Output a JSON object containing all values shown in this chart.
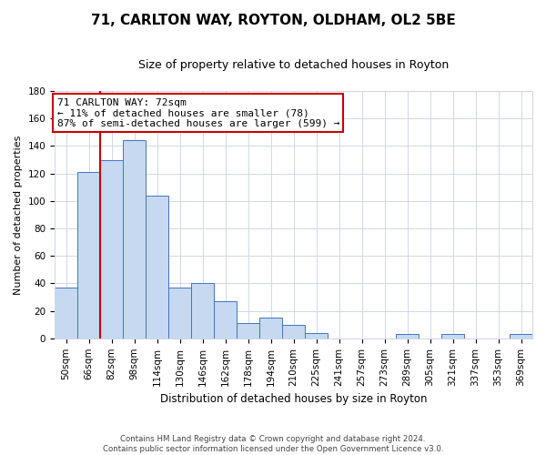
{
  "title": "71, CARLTON WAY, ROYTON, OLDHAM, OL2 5BE",
  "subtitle": "Size of property relative to detached houses in Royton",
  "xlabel": "Distribution of detached houses by size in Royton",
  "ylabel": "Number of detached properties",
  "bar_labels": [
    "50sqm",
    "66sqm",
    "82sqm",
    "98sqm",
    "114sqm",
    "130sqm",
    "146sqm",
    "162sqm",
    "178sqm",
    "194sqm",
    "210sqm",
    "225sqm",
    "241sqm",
    "257sqm",
    "273sqm",
    "289sqm",
    "305sqm",
    "321sqm",
    "337sqm",
    "353sqm",
    "369sqm"
  ],
  "bar_values": [
    37,
    121,
    130,
    144,
    104,
    37,
    40,
    27,
    11,
    15,
    10,
    4,
    0,
    0,
    0,
    3,
    0,
    3,
    0,
    0,
    3
  ],
  "bar_color": "#c6d9f0",
  "bar_edge_color": "#4472c4",
  "bar_width": 1.0,
  "ylim": [
    0,
    180
  ],
  "yticks": [
    0,
    20,
    40,
    60,
    80,
    100,
    120,
    140,
    160,
    180
  ],
  "property_line_color": "#cc0000",
  "property_line_x": 1.5,
  "annotation_title": "71 CARLTON WAY: 72sqm",
  "annotation_line1": "← 11% of detached houses are smaller (78)",
  "annotation_line2": "87% of semi-detached houses are larger (599) →",
  "footer_line1": "Contains HM Land Registry data © Crown copyright and database right 2024.",
  "footer_line2": "Contains public sector information licensed under the Open Government Licence v3.0.",
  "bg_color": "#ffffff",
  "grid_color": "#d0d8e8",
  "title_fontsize": 11,
  "subtitle_fontsize": 9,
  "ylabel_fontsize": 8,
  "xlabel_fontsize": 8.5,
  "tick_fontsize": 7.5
}
